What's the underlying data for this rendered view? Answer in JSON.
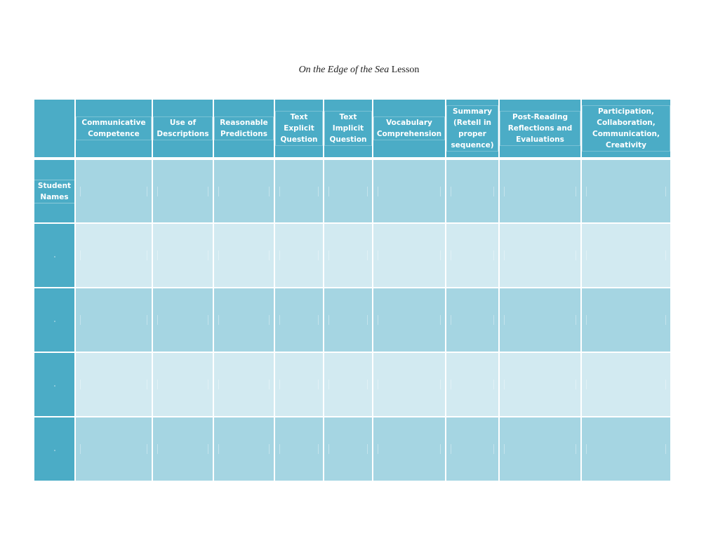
{
  "document": {
    "title_italic": "On the Edge of the Sea",
    "title_rest": " Lesson"
  },
  "table": {
    "corner_label": "",
    "row_header_label": "Student Names",
    "columns": [
      "Communicative Competence",
      "Use of Descriptions",
      "Reasonable Predictions",
      "Text Explicit Question",
      "Text Implicit Question",
      "Vocabulary Comprehension",
      "Summary (Retell in proper sequence)",
      "Post-Reading Reflections and Evaluations",
      "Participation, Collaboration, Communication, Creativity"
    ],
    "rows": [
      {
        "label": "Student Names",
        "cells": [
          "",
          "",
          "",
          "",
          "",
          "",
          "",
          "",
          ""
        ]
      },
      {
        "label": "",
        "cells": [
          "",
          "",
          "",
          "",
          "",
          "",
          "",
          "",
          ""
        ]
      },
      {
        "label": "",
        "cells": [
          "",
          "",
          "",
          "",
          "",
          "",
          "",
          "",
          ""
        ]
      },
      {
        "label": "",
        "cells": [
          "",
          "",
          "",
          "",
          "",
          "",
          "",
          "",
          ""
        ]
      },
      {
        "label": "",
        "cells": [
          "",
          "",
          "",
          "",
          "",
          "",
          "",
          "",
          ""
        ]
      }
    ]
  },
  "colors": {
    "header": "#4bacc6",
    "band_dark": "#a5d5e2",
    "band_light": "#d2eaf1",
    "header_text": "#ffffff"
  }
}
